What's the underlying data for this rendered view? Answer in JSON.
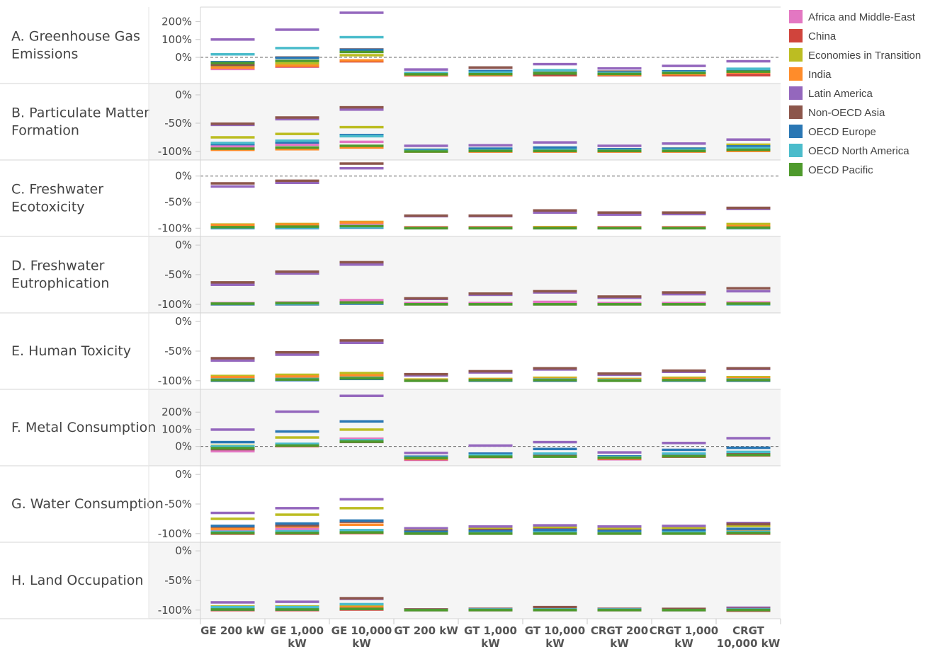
{
  "chart_data": {
    "type": "scatter",
    "categories": [
      "GE 200 kW",
      "GE 1,000 kW",
      "GE 10,000 kW",
      "GT 200 kW",
      "GT 1,000 kW",
      "GT 10,000 kW",
      "CRGT 200 kW",
      "CRGT 1,000 kW",
      "CRGT 10,000 kW"
    ],
    "series_names": [
      "Africa and Middle-East",
      "China",
      "Economies in Transition",
      "India",
      "Latin America",
      "Non-OECD Asia",
      "OECD Europe",
      "OECD North America",
      "OECD Pacific"
    ],
    "colors": [
      "#e377c2",
      "#d0443c",
      "#bcbd22",
      "#ff8c2a",
      "#9467bd",
      "#8c564b",
      "#2a77b4",
      "#4bbccb",
      "#4e9a2c"
    ],
    "panels": [
      {
        "title": "A. Greenhouse Gas Emissions",
        "ylim": [
          -115,
          250
        ],
        "ticks": [
          {
            "v": 200,
            "t": "200%"
          },
          {
            "v": 100,
            "t": "100%"
          },
          {
            "v": 0,
            "t": "0%"
          }
        ],
        "zero_line": true,
        "values": [
          [
            -65,
            -52,
            -20,
            -101,
            -99,
            -95,
            -98,
            -96,
            -90
          ],
          [
            -57,
            -50,
            -22,
            -100,
            -100,
            -100,
            -100,
            -100,
            -100
          ],
          [
            -45,
            -34,
            12,
            -93,
            -90,
            -86,
            -92,
            -87,
            -80
          ],
          [
            -58,
            -47,
            -17,
            -98,
            -97,
            -93,
            -96,
            -94,
            -85
          ],
          [
            100,
            155,
            250,
            -68,
            -58,
            -38,
            -62,
            -48,
            -22
          ],
          [
            -42,
            -1,
            44,
            -90,
            -57,
            -94,
            -80,
            -84,
            -78
          ],
          [
            -27,
            -3,
            42,
            -88,
            -77,
            -88,
            -84,
            -78,
            -75
          ],
          [
            17,
            52,
            113,
            -90,
            -85,
            -72,
            -88,
            -84,
            -64
          ],
          [
            -32,
            -20,
            30,
            -95,
            -94,
            -90,
            -93,
            -88,
            -80
          ]
        ]
      },
      {
        "title": "B. Particulate Matter Formation",
        "ylim": [
          -105,
          10
        ],
        "ticks": [
          {
            "v": 0,
            "t": "0%"
          },
          {
            "v": -50,
            "t": "-50%"
          },
          {
            "v": -100,
            "t": "-100%"
          }
        ],
        "zero_line": false,
        "values": [
          [
            -91,
            -88,
            -83,
            -99,
            -99,
            -99,
            -99,
            -99,
            -99
          ],
          [
            -96,
            -95,
            -92,
            -100,
            -100,
            -100,
            -100,
            -100,
            -98
          ],
          [
            -75,
            -69,
            -57,
            -97,
            -96,
            -94,
            -96,
            -95,
            -88
          ],
          [
            -97,
            -96,
            -93,
            -100,
            -100,
            -100,
            -100,
            -100,
            -99
          ],
          [
            -53,
            -43,
            -26,
            -90,
            -89,
            -84,
            -90,
            -86,
            -79
          ],
          [
            -51,
            -40,
            -22,
            -99,
            -98,
            -97,
            -99,
            -98,
            -94
          ],
          [
            -87,
            -84,
            -71,
            -97,
            -95,
            -93,
            -96,
            -95,
            -91
          ],
          [
            -85,
            -81,
            -73,
            -99,
            -98,
            -97,
            -98,
            -97,
            -94
          ],
          [
            -95,
            -93,
            -90,
            -100,
            -99,
            -99,
            -99,
            -99,
            -97
          ]
        ]
      },
      {
        "title": "C. Freshwater Ecotoxicity",
        "ylim": [
          -105,
          20
        ],
        "ticks": [
          {
            "v": 0,
            "t": "0%"
          },
          {
            "v": -50,
            "t": "-50%"
          },
          {
            "v": -100,
            "t": "-100%"
          }
        ],
        "zero_line": true,
        "values": [
          [
            -96,
            -95,
            -91,
            -98,
            -98,
            -98,
            -98,
            -98,
            -97
          ],
          [
            -99,
            -99,
            -97,
            -100,
            -100,
            -100,
            -100,
            -100,
            -100
          ],
          [
            -93,
            -92,
            -88,
            -99,
            -99,
            -98,
            -99,
            -99,
            -92
          ],
          [
            -94,
            -93,
            -89,
            -99,
            -99,
            -99,
            -99,
            -99,
            -96
          ],
          [
            -20,
            -13,
            15,
            -77,
            -77,
            -70,
            -74,
            -73,
            -63
          ],
          [
            -14,
            -9,
            24,
            -76,
            -76,
            -66,
            -70,
            -70,
            -61
          ],
          [
            -100,
            -100,
            -99,
            -100,
            -100,
            -100,
            -100,
            -100,
            -100
          ],
          [
            -99,
            -99,
            -98,
            -100,
            -100,
            -100,
            -100,
            -100,
            -100
          ],
          [
            -98,
            -97,
            -96,
            -100,
            -100,
            -100,
            -100,
            -100,
            -99
          ]
        ]
      },
      {
        "title": "D. Freshwater Eutrophication",
        "ylim": [
          -105,
          5
        ],
        "ticks": [
          {
            "v": 0,
            "t": "0%"
          },
          {
            "v": -50,
            "t": "-50%"
          },
          {
            "v": -100,
            "t": "-100%"
          }
        ],
        "zero_line": false,
        "values": [
          [
            -98,
            -97,
            -93,
            -98,
            -98,
            -96,
            -98,
            -98,
            -97
          ],
          [
            -100,
            -100,
            -99,
            -100,
            -100,
            -100,
            -100,
            -100,
            -100
          ],
          [
            -99,
            -98,
            -97,
            -100,
            -100,
            -100,
            -100,
            -100,
            -99
          ],
          [
            -99,
            -99,
            -97,
            -100,
            -100,
            -100,
            -100,
            -100,
            -99
          ],
          [
            -67,
            -48,
            -33,
            -91,
            -84,
            -80,
            -89,
            -83,
            -78
          ],
          [
            -63,
            -45,
            -29,
            -90,
            -82,
            -78,
            -87,
            -80,
            -73
          ],
          [
            -100,
            -100,
            -99,
            -100,
            -100,
            -100,
            -100,
            -100,
            -100
          ],
          [
            -99,
            -99,
            -98,
            -100,
            -100,
            -100,
            -100,
            -100,
            -100
          ],
          [
            -99,
            -98,
            -97,
            -100,
            -100,
            -100,
            -100,
            -100,
            -99
          ]
        ]
      },
      {
        "title": "E. Human Toxicity",
        "ylim": [
          -105,
          5
        ],
        "ticks": [
          {
            "v": 0,
            "t": "0%"
          },
          {
            "v": -50,
            "t": "-50%"
          },
          {
            "v": -100,
            "t": "-100%"
          }
        ],
        "zero_line": false,
        "values": [
          [
            -96,
            -95,
            -93,
            -99,
            -98,
            -98,
            -99,
            -98,
            -97
          ],
          [
            -98,
            -97,
            -95,
            -100,
            -100,
            -99,
            -100,
            -99,
            -99
          ],
          [
            -92,
            -90,
            -87,
            -98,
            -97,
            -95,
            -97,
            -95,
            -94
          ],
          [
            -94,
            -93,
            -91,
            -99,
            -98,
            -97,
            -98,
            -97,
            -96
          ],
          [
            -66,
            -56,
            -36,
            -91,
            -86,
            -81,
            -90,
            -85,
            -80
          ],
          [
            -62,
            -52,
            -32,
            -89,
            -84,
            -79,
            -88,
            -83,
            -79
          ],
          [
            -100,
            -99,
            -97,
            -100,
            -100,
            -100,
            -100,
            -100,
            -100
          ],
          [
            -98,
            -97,
            -95,
            -100,
            -99,
            -98,
            -99,
            -99,
            -98
          ],
          [
            -99,
            -98,
            -96,
            -100,
            -99,
            -99,
            -100,
            -99,
            -99
          ]
        ]
      },
      {
        "title": "F. Metal Consumption",
        "ylim": [
          -80,
          300
        ],
        "ticks": [
          {
            "v": 200,
            "t": "200%"
          },
          {
            "v": 100,
            "t": "100%"
          },
          {
            "v": 0,
            "t": "0%"
          }
        ],
        "zero_line": true,
        "values": [
          [
            -28,
            12,
            45,
            -78,
            -60,
            -53,
            -75,
            -52,
            -42
          ],
          [
            -5,
            2,
            30,
            -74,
            -62,
            -56,
            -72,
            -60,
            -52
          ],
          [
            3,
            52,
            98,
            -70,
            -55,
            -45,
            -68,
            -46,
            -38
          ],
          [
            -5,
            14,
            34,
            -72,
            -56,
            -50,
            -70,
            -50,
            -40
          ],
          [
            98,
            203,
            295,
            -38,
            5,
            25,
            -35,
            20,
            48
          ],
          [
            -16,
            11,
            26,
            -62,
            -52,
            -55,
            -65,
            -54,
            -45
          ],
          [
            25,
            87,
            146,
            -60,
            -42,
            -15,
            -58,
            -20,
            -8
          ],
          [
            0,
            15,
            36,
            -65,
            -50,
            -42,
            -62,
            -42,
            -32
          ],
          [
            -10,
            5,
            28,
            -68,
            -60,
            -60,
            -66,
            -58,
            -50
          ]
        ]
      },
      {
        "title": "G. Water Consumption",
        "ylim": [
          -105,
          5
        ],
        "ticks": [
          {
            "v": 0,
            "t": "0%"
          },
          {
            "v": -50,
            "t": "-50%"
          },
          {
            "v": -100,
            "t": "-100%"
          }
        ],
        "zero_line": false,
        "values": [
          [
            -96,
            -92,
            -85,
            -100,
            -99,
            -98,
            -99,
            -98,
            -97
          ],
          [
            -100,
            -100,
            -99,
            -100,
            -100,
            -100,
            -100,
            -100,
            -100
          ],
          [
            -75,
            -68,
            -57,
            -92,
            -91,
            -89,
            -92,
            -90,
            -87
          ],
          [
            -92,
            -88,
            -85,
            -99,
            -98,
            -97,
            -98,
            -97,
            -95
          ],
          [
            -65,
            -57,
            -42,
            -91,
            -88,
            -86,
            -88,
            -87,
            -82
          ],
          [
            -88,
            -86,
            -80,
            -96,
            -94,
            -93,
            -95,
            -94,
            -84
          ],
          [
            -87,
            -83,
            -78,
            -97,
            -96,
            -94,
            -96,
            -95,
            -92
          ],
          [
            -97,
            -96,
            -94,
            -100,
            -99,
            -98,
            -99,
            -98,
            -97
          ],
          [
            -99,
            -99,
            -98,
            -100,
            -100,
            -100,
            -100,
            -100,
            -99
          ]
        ]
      },
      {
        "title": "H. Land Occupation",
        "ylim": [
          -105,
          5
        ],
        "ticks": [
          {
            "v": 0,
            "t": "0%"
          },
          {
            "v": -50,
            "t": "-50%"
          },
          {
            "v": -100,
            "t": "-100%"
          }
        ],
        "zero_line": false,
        "values": [
          [
            -98,
            -97,
            -96,
            -100,
            -100,
            -99,
            -100,
            -100,
            -99
          ],
          [
            -100,
            -100,
            -99,
            -100,
            -100,
            -100,
            -100,
            -100,
            -101
          ],
          [
            -94,
            -94,
            -92,
            -100,
            -99,
            -98,
            -99,
            -99,
            -98
          ],
          [
            -97,
            -96,
            -95,
            -100,
            -100,
            -99,
            -100,
            -100,
            -99
          ],
          [
            -87,
            -86,
            -81,
            -99,
            -98,
            -97,
            -98,
            -99,
            -96
          ],
          [
            -96,
            -96,
            -80,
            -99,
            -98,
            -95,
            -98,
            -98,
            -98
          ],
          [
            -99,
            -99,
            -98,
            -100,
            -100,
            -100,
            -100,
            -100,
            -100
          ],
          [
            -95,
            -95,
            -90,
            -100,
            -99,
            -99,
            -99,
            -100,
            -99
          ],
          [
            -99,
            -99,
            -98,
            -100,
            -100,
            -100,
            -100,
            -100,
            -100
          ]
        ]
      }
    ],
    "grid": false,
    "legend_position": "right"
  }
}
